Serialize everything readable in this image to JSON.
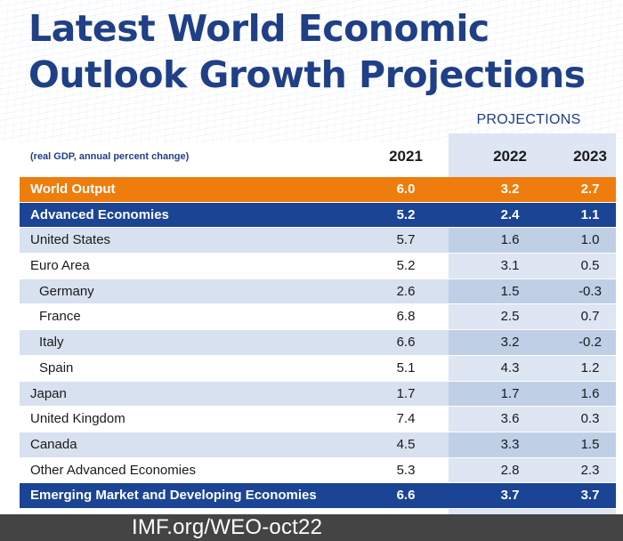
{
  "title": {
    "line1": "Latest World Economic",
    "line2": "Outlook Growth Projections"
  },
  "header": {
    "projections_label": "PROJECTIONS",
    "units_note": "(real GDP, annual percent change)"
  },
  "footer": {
    "link_text": "IMF.org/WEO-oct22"
  },
  "colors": {
    "title": "#1f3f86",
    "highlight_orange": "#ee7d0d",
    "highlight_navy": "#1b4494",
    "stripe": "#d7e1ef",
    "footer_bg": "#444444"
  },
  "chart_data": {
    "type": "table",
    "title": "Latest World Economic Outlook Growth Projections",
    "columns": [
      "2021",
      "2022",
      "2023"
    ],
    "projection_columns": [
      "2022",
      "2023"
    ],
    "rows": [
      {
        "label": "World Output",
        "values": [
          "6.0",
          "3.2",
          "2.7"
        ],
        "style": "orange",
        "indent": false
      },
      {
        "label": "Advanced Economies",
        "values": [
          "5.2",
          "2.4",
          "1.1"
        ],
        "style": "navy",
        "indent": false
      },
      {
        "label": "United States",
        "values": [
          "5.7",
          "1.6",
          "1.0"
        ],
        "style": "stripe",
        "indent": false
      },
      {
        "label": "Euro Area",
        "values": [
          "5.2",
          "3.1",
          "0.5"
        ],
        "style": "plain",
        "indent": false
      },
      {
        "label": "Germany",
        "values": [
          "2.6",
          "1.5",
          "-0.3"
        ],
        "style": "stripe",
        "indent": true
      },
      {
        "label": "France",
        "values": [
          "6.8",
          "2.5",
          "0.7"
        ],
        "style": "plain",
        "indent": true
      },
      {
        "label": "Italy",
        "values": [
          "6.6",
          "3.2",
          "-0.2"
        ],
        "style": "stripe",
        "indent": true
      },
      {
        "label": "Spain",
        "values": [
          "5.1",
          "4.3",
          "1.2"
        ],
        "style": "plain",
        "indent": true
      },
      {
        "label": "Japan",
        "values": [
          "1.7",
          "1.7",
          "1.6"
        ],
        "style": "stripe",
        "indent": false
      },
      {
        "label": "United Kingdom",
        "values": [
          "7.4",
          "3.6",
          "0.3"
        ],
        "style": "plain",
        "indent": false
      },
      {
        "label": "Canada",
        "values": [
          "4.5",
          "3.3",
          "1.5"
        ],
        "style": "stripe",
        "indent": false
      },
      {
        "label": "Other Advanced Economies",
        "values": [
          "5.3",
          "2.8",
          "2.3"
        ],
        "style": "plain",
        "indent": false
      },
      {
        "label": "Emerging Market and Developing Economies",
        "values": [
          "6.6",
          "3.7",
          "3.7"
        ],
        "style": "navy",
        "indent": false
      }
    ]
  }
}
